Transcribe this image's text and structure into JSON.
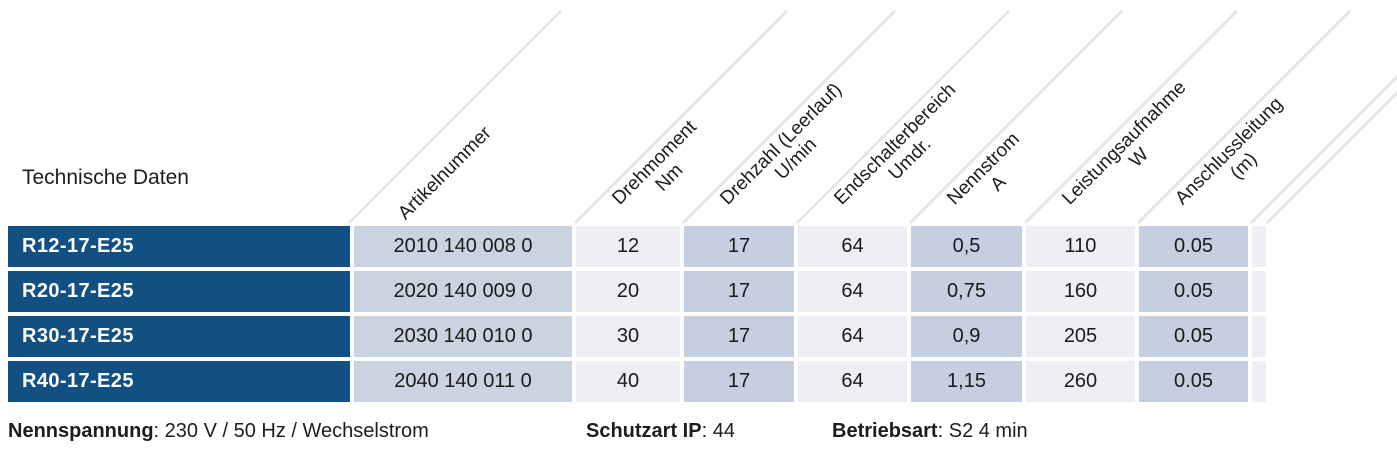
{
  "page": {
    "title": "Technische Daten"
  },
  "colors": {
    "row_label_blue": "#124f82",
    "cell_medium": "#c5cfdf",
    "cell_article": "#cad3e0",
    "cell_light": "#edeff4",
    "divider_gray": "#e3e5e9",
    "row_label_text": "#ffffff",
    "body_text": "#1d1d1b"
  },
  "table": {
    "columns": [
      {
        "label": "Artikelnummer",
        "unit": ""
      },
      {
        "label": "Drehmoment",
        "unit": "Nm"
      },
      {
        "label": "Drehzahl (Leerlauf)",
        "unit": "U/min"
      },
      {
        "label": "Endschalterbereich",
        "unit": "Umdr."
      },
      {
        "label": "Nennstrom",
        "unit": "A"
      },
      {
        "label": "Leistungsaufnahme",
        "unit": "W"
      },
      {
        "label": "Anschlussleitung",
        "unit": "(m)"
      }
    ],
    "rows": [
      {
        "model": "R12-17-E25",
        "artikelnummer": "2010 140 008 0",
        "drehmoment": "12",
        "drehzahl": "17",
        "endschalterbereich": "64",
        "nennstrom": "0,5",
        "leistungsaufnahme": "110",
        "anschlussleitung": "0.05"
      },
      {
        "model": "R20-17-E25",
        "artikelnummer": "2020 140 009 0",
        "drehmoment": "20",
        "drehzahl": "17",
        "endschalterbereich": "64",
        "nennstrom": "0,75",
        "leistungsaufnahme": "160",
        "anschlussleitung": "0.05"
      },
      {
        "model": "R30-17-E25",
        "artikelnummer": "2030 140 010 0",
        "drehmoment": "30",
        "drehzahl": "17",
        "endschalterbereich": "64",
        "nennstrom": "0,9",
        "leistungsaufnahme": "205",
        "anschlussleitung": "0.05"
      },
      {
        "model": "R40-17-E25",
        "artikelnummer": "2040 140 011 0",
        "drehmoment": "40",
        "drehzahl": "17",
        "endschalterbereich": "64",
        "nennstrom": "1,15",
        "leistungsaufnahme": "260",
        "anschlussleitung": "0.05"
      }
    ]
  },
  "footer": {
    "nennspannung_label": "Nennspannung",
    "nennspannung_value": ": 230 V / 50 Hz / Wechselstrom",
    "schutzart_label": "Schutzart IP",
    "schutzart_value": ": 44",
    "betriebsart_label": "Betriebsart",
    "betriebsart_value": ": S2 4 min"
  }
}
